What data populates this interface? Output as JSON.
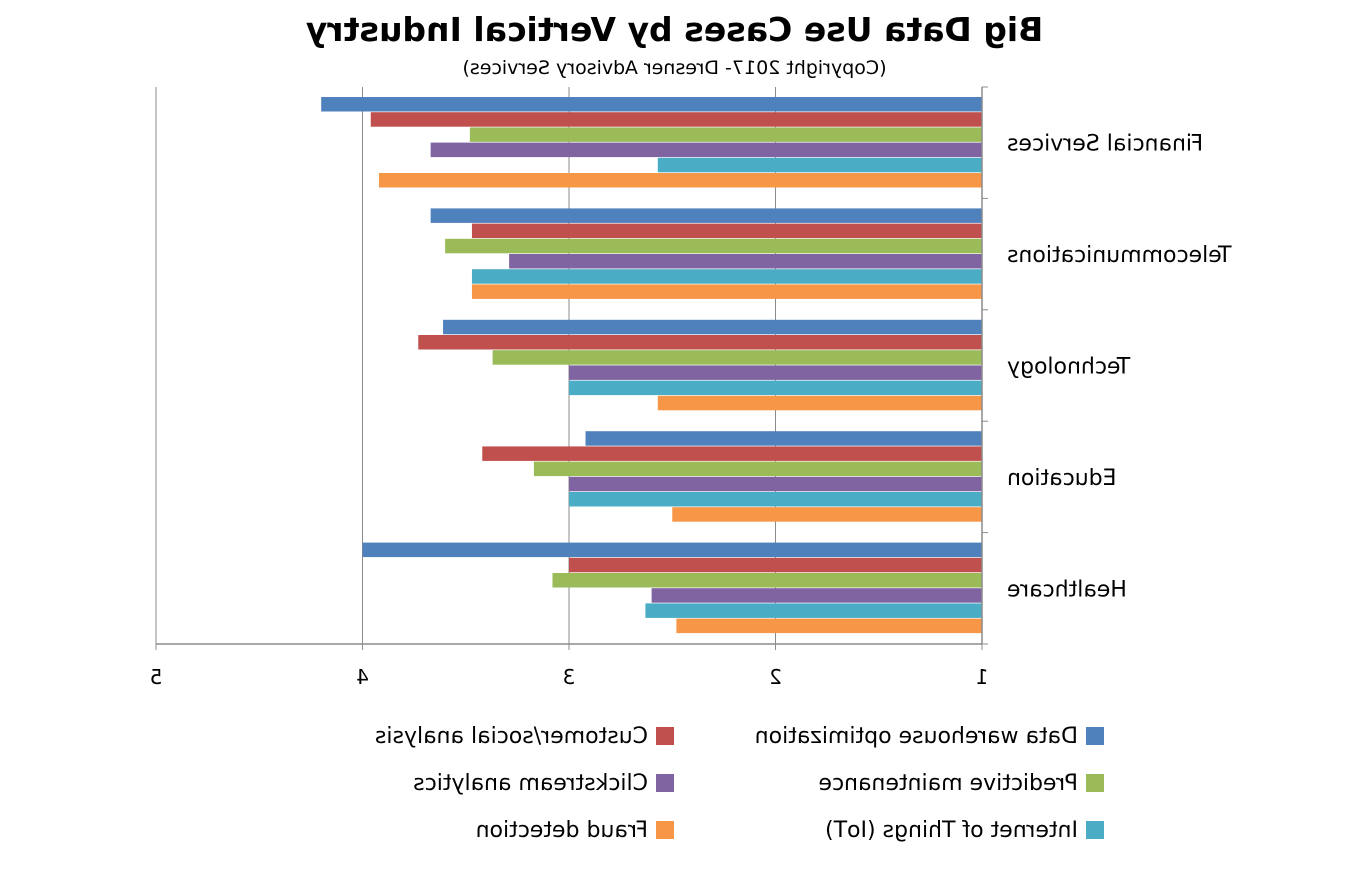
{
  "chart_data": {
    "type": "bar",
    "orientation": "horizontal",
    "presentation": "mirrored",
    "title": "Big Data Use Cases by Vertical Industry",
    "subtitle": "(Copyright 2017- Dresner Advisory Services)",
    "xlabel": "",
    "ylabel": "",
    "xlim": [
      1,
      5
    ],
    "ticks": [
      "1",
      "2",
      "3",
      "4",
      "5"
    ],
    "grid": true,
    "legend_position": "bottom",
    "categories": [
      "Financial Services",
      "Telecommunications",
      "Technology",
      "Education",
      "Healthcare"
    ],
    "series": [
      {
        "name": "Data warehouse optimization",
        "color": "#4f81bd",
        "values": [
          4.2,
          3.67,
          3.61,
          2.92,
          4.0
        ]
      },
      {
        "name": "Customer/social analysis",
        "color": "#c0504d",
        "values": [
          3.96,
          3.47,
          3.73,
          3.42,
          3.0
        ]
      },
      {
        "name": "Predictive maintenance",
        "color": "#9bbb59",
        "values": [
          3.48,
          3.6,
          3.37,
          3.17,
          3.08
        ]
      },
      {
        "name": "Clickstream analytics",
        "color": "#8064a2",
        "values": [
          3.67,
          3.29,
          3.0,
          3.0,
          2.6
        ]
      },
      {
        "name": "Internet of Things (IoT)",
        "color": "#4bacc6",
        "values": [
          2.57,
          3.47,
          3.0,
          3.0,
          2.63
        ]
      },
      {
        "name": "Fraud detection",
        "color": "#f79646",
        "values": [
          3.92,
          3.47,
          2.57,
          2.5,
          2.48
        ]
      }
    ]
  }
}
